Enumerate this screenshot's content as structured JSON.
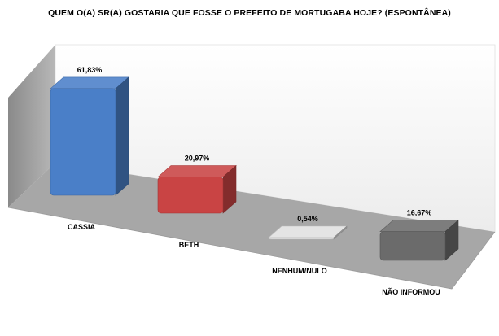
{
  "chart_data": {
    "type": "bar",
    "title": "QUEM O(A) SR(A) GOSTARIA QUE FOSSE O PREFEITO DE MORTUGABA HOJE? (ESPONTÂNEA)",
    "categories": [
      "CASSIA",
      "BETH",
      "NENHUM/NULO",
      "NÃO INFORMOU"
    ],
    "values": [
      61.83,
      20.97,
      0.54,
      16.67
    ],
    "value_labels": [
      "61,83%",
      "20,97%",
      "0,54%",
      "16,67%"
    ],
    "colors": [
      "#4a7fc8",
      "#c94444",
      "#e0e0e0",
      "#6b6b6b"
    ],
    "ylim": [
      0,
      70
    ],
    "unit": "%",
    "grid": false,
    "legend": "none",
    "style": "3d"
  }
}
